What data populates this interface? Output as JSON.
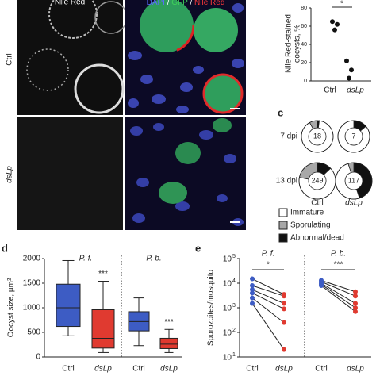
{
  "micrographs": {
    "channel_label": "Nile Red",
    "merge_label": [
      "DAPI",
      "/",
      "GFP",
      "/",
      "Nile Red"
    ],
    "merge_colors": [
      "#5a6bff",
      "#ffffff",
      "#3ecf5a",
      "#ffffff",
      "#ff3a3a"
    ],
    "rows": [
      "Ctrl",
      "dsLp"
    ]
  },
  "chart_data": [
    {
      "type": "scatter",
      "ylabel": [
        "Nile Red-stained",
        "oocysts, %"
      ],
      "categories": [
        "Ctrl",
        "dsLp"
      ],
      "values": [
        [
          65,
          62,
          56
        ],
        [
          22,
          12,
          3
        ]
      ],
      "color": "#111111",
      "ylim": [
        0,
        80
      ],
      "yticks": [
        0,
        20,
        40,
        60,
        80
      ],
      "significance": "*"
    },
    {
      "type": "donut",
      "letter": "c",
      "rows": [
        "7 dpi",
        "13 dpi"
      ],
      "columns": [
        "Ctrl",
        "dsLp"
      ],
      "categories": [
        "Immature",
        "Sporulating",
        "Abnormal/dead"
      ],
      "colors": [
        "#ffffff",
        "#a8a8a8",
        "#111111"
      ],
      "donuts": [
        {
          "n": 18,
          "values": [
            90,
            8,
            2
          ]
        },
        {
          "n": 7,
          "values": [
            86,
            0,
            14
          ]
        },
        {
          "n": 249,
          "values": [
            65,
            22,
            13
          ]
        },
        {
          "n": 117,
          "values": [
            50,
            5,
            45
          ]
        }
      ]
    },
    {
      "type": "box",
      "letter": "d",
      "ylabel": "Oocyst size, µm²",
      "ylim": [
        0,
        2000
      ],
      "yticks": [
        0,
        500,
        1000,
        1500,
        2000
      ],
      "groups": [
        {
          "name": "P. f.",
          "significance": "***",
          "boxes": [
            {
              "category": "Ctrl",
              "color": "#3d5cc4",
              "values": [
                430,
                620,
                1000,
                1480,
                1960
              ]
            },
            {
              "category": "dsLp",
              "color": "#e03a30",
              "values": [
                90,
                180,
                380,
                960,
                1540
              ]
            }
          ]
        },
        {
          "name": "P. b.",
          "significance": "***",
          "boxes": [
            {
              "category": "Ctrl",
              "color": "#3d5cc4",
              "values": [
                230,
                530,
                720,
                920,
                1200
              ]
            },
            {
              "category": "dsLp",
              "color": "#e03a30",
              "values": [
                90,
                170,
                260,
                380,
                560
              ]
            }
          ]
        }
      ]
    },
    {
      "type": "paired",
      "letter": "e",
      "ylabel": "Sporozoites/mosquito",
      "log": true,
      "ylim": [
        10,
        100000
      ],
      "yticks": [
        {
          "value": 10,
          "label": "10",
          "sup": "1"
        },
        {
          "value": 100,
          "label": "10",
          "sup": "2"
        },
        {
          "value": 1000,
          "label": "10",
          "sup": "3"
        },
        {
          "value": 10000,
          "label": "10",
          "sup": "4"
        },
        {
          "value": 100000,
          "label": "10",
          "sup": "5"
        }
      ],
      "categories": [
        "Ctrl",
        "dsLp"
      ],
      "colors": [
        "#3d5cc4",
        "#e03a30"
      ],
      "groups": [
        {
          "name": "P. f.",
          "significance": "*",
          "values": [
            [
              15000,
              8000,
              5500,
              4000,
              2500,
              1500
            ],
            [
              3500,
              3000,
              1500,
              900,
              250,
              20
            ]
          ]
        },
        {
          "name": "P. b.",
          "significance": "***",
          "values": [
            [
              13000,
              11500,
              10000,
              9000,
              8000
            ],
            [
              4500,
              3000,
              1500,
              1000,
              700
            ]
          ]
        }
      ]
    }
  ]
}
